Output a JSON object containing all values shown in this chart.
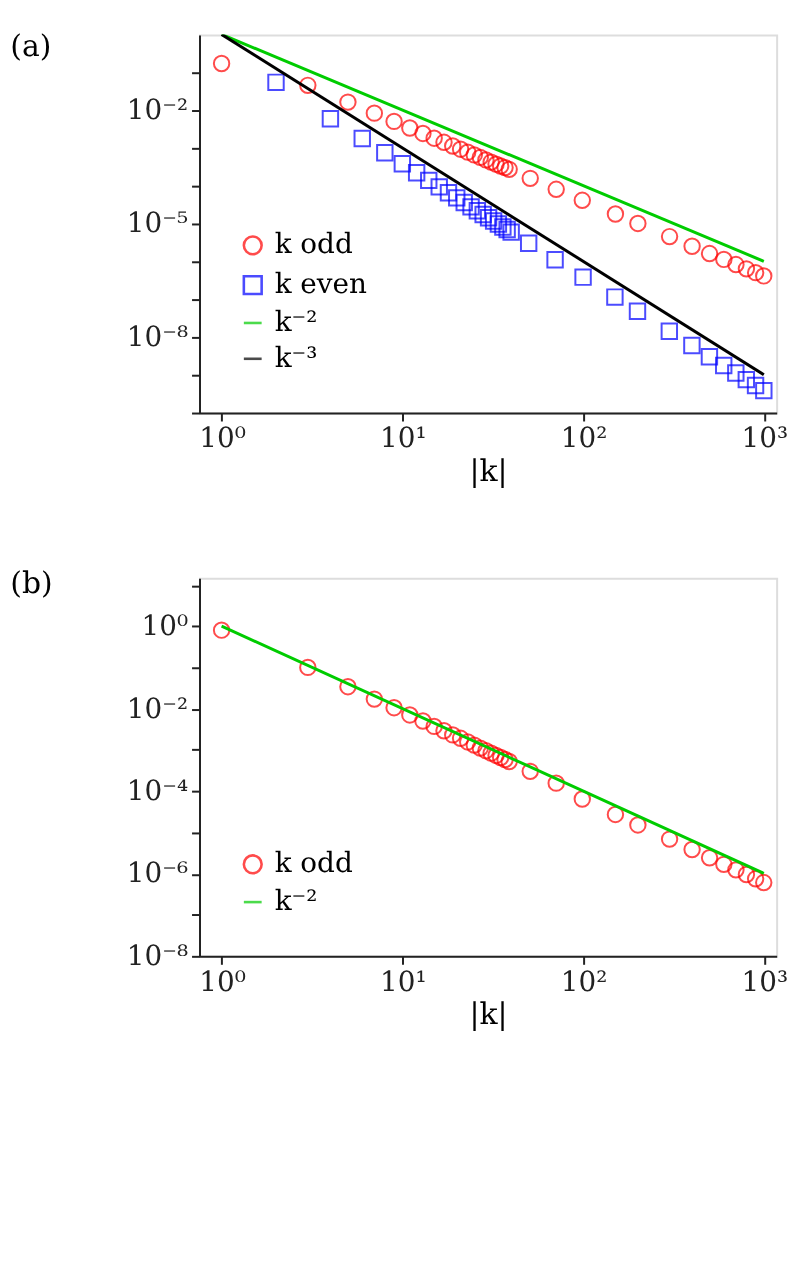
{
  "chart_data": [
    {
      "type": "scatter",
      "title": "(a)",
      "xlabel": "|k|",
      "xlim": [
        0.75,
        1170
      ],
      "ylim": [
        1e-10,
        1
      ],
      "log": "xy",
      "grid": false,
      "legend": "bottom left",
      "xticks": [
        {
          "value": 1,
          "label": "10⁰"
        },
        {
          "value": 10,
          "label": "10¹"
        },
        {
          "value": 100,
          "label": "10²"
        },
        {
          "value": 1000,
          "label": "10³"
        }
      ],
      "yticks": [
        {
          "value": 1e-10,
          "label": null
        },
        {
          "value": 1e-09,
          "label": null
        },
        {
          "value": 1e-08,
          "label": "10⁻⁸"
        },
        {
          "value": 1e-07,
          "label": null
        },
        {
          "value": 1e-06,
          "label": null
        },
        {
          "value": 1e-05,
          "label": "10⁻⁵"
        },
        {
          "value": 0.0001,
          "label": null
        },
        {
          "value": 0.001,
          "label": null
        },
        {
          "value": 0.01,
          "label": "10⁻²"
        },
        {
          "value": 0.1,
          "label": null
        }
      ],
      "series": [
        {
          "name": "k odd",
          "marker": "circle",
          "color": "#ff0000",
          "x": [
            1,
            3,
            5,
            7,
            9,
            11,
            13,
            15,
            17,
            19,
            21,
            23,
            25,
            27,
            29,
            31,
            33,
            35,
            37,
            39,
            51,
            71,
            99,
            151,
            201,
            301,
            401,
            501,
            601,
            701,
            801,
            901,
            999
          ],
          "values": [
            0.17,
            0.045,
            0.0162,
            0.00827,
            0.005,
            0.00335,
            0.0024,
            0.0018,
            0.0014,
            0.00112,
            0.00092,
            0.00077,
            0.00065,
            0.00056,
            0.00048,
            0.00042,
            0.00037,
            0.00033,
            0.0003,
            0.00027,
            0.000156,
            8e-05,
            4.1e-05,
            1.78e-05,
            1e-05,
            4.5e-06,
            2.5e-06,
            1.6e-06,
            1.12e-06,
            8.2e-07,
            6.3e-07,
            5e-07,
            4.1e-07
          ]
        },
        {
          "name": "k even",
          "marker": "square",
          "color": "#0000ff",
          "x": [
            2,
            4,
            6,
            8,
            10,
            12,
            14,
            16,
            18,
            20,
            22,
            24,
            26,
            28,
            30,
            32,
            34,
            36,
            38,
            40,
            50,
            70,
            100,
            150,
            200,
            300,
            400,
            500,
            600,
            700,
            800,
            900,
            1000
          ],
          "values": [
            0.054,
            0.0059,
            0.00176,
            0.00074,
            0.00038,
            0.00022,
            0.000138,
            9.3e-05,
            6.5e-05,
            4.75e-05,
            3.6e-05,
            2.75e-05,
            2.16e-05,
            1.73e-05,
            1.41e-05,
            1.16e-05,
            9.7e-06,
            8.1e-06,
            6.9e-06,
            5.9e-06,
            3e-06,
            1.1e-06,
            3.8e-07,
            1.13e-07,
            4.75e-08,
            1.41e-08,
            5.9e-09,
            3e-09,
            1.76e-09,
            1.11e-09,
            7.4e-10,
            5.2e-10,
            3.8e-10
          ]
        },
        {
          "name": "k⁻²",
          "type": "line",
          "line_style": "solid",
          "color": "#00cc00",
          "x": [
            1,
            1000
          ],
          "values": [
            1,
            1e-06
          ]
        },
        {
          "name": "k⁻³",
          "type": "line",
          "line_style": "solid",
          "color": "#000000",
          "x": [
            1,
            1000
          ],
          "values": [
            1,
            1e-09
          ]
        }
      ]
    },
    {
      "type": "scatter",
      "title": "(b)",
      "xlabel": "|k|",
      "xlim": [
        0.75,
        1170
      ],
      "ylim": [
        1e-08,
        15
      ],
      "log": "xy",
      "grid": false,
      "legend": "bottom left",
      "xticks": [
        {
          "value": 1,
          "label": "10⁰"
        },
        {
          "value": 10,
          "label": "10¹"
        },
        {
          "value": 100,
          "label": "10²"
        },
        {
          "value": 1000,
          "label": "10³"
        }
      ],
      "yticks": [
        {
          "value": 1e-08,
          "label": "10⁻⁸"
        },
        {
          "value": 1e-07,
          "label": null
        },
        {
          "value": 1e-06,
          "label": "10⁻⁶"
        },
        {
          "value": 1e-05,
          "label": null
        },
        {
          "value": 0.0001,
          "label": "10⁻⁴"
        },
        {
          "value": 0.001,
          "label": null
        },
        {
          "value": 0.01,
          "label": "10⁻²"
        },
        {
          "value": 0.1,
          "label": null
        },
        {
          "value": 1,
          "label": "10⁰"
        },
        {
          "value": 10,
          "label": null
        }
      ],
      "series": [
        {
          "name": "k odd",
          "marker": "circle",
          "color": "#ff0000",
          "x": [
            1,
            3,
            5,
            7,
            9,
            11,
            13,
            15,
            17,
            19,
            21,
            23,
            25,
            27,
            29,
            31,
            33,
            35,
            37,
            39,
            51,
            71,
            99,
            151,
            201,
            301,
            401,
            501,
            601,
            701,
            801,
            901,
            999
          ],
          "values": [
            0.8,
            0.1,
            0.034,
            0.017,
            0.0105,
            0.007,
            0.005,
            0.0037,
            0.0029,
            0.0023,
            0.0019,
            0.00155,
            0.0013,
            0.0011,
            0.00095,
            0.00083,
            0.00073,
            0.00065,
            0.00058,
            0.00052,
            0.0003,
            0.000155,
            6.4e-05,
            2.7e-05,
            1.5e-05,
            6.8e-06,
            3.8e-06,
            2.4e-06,
            1.66e-06,
            1.22e-06,
            9.4e-07,
            7.4e-07,
            6e-07
          ]
        },
        {
          "name": "k⁻²",
          "type": "line",
          "line_style": "solid",
          "color": "#00cc00",
          "x": [
            1,
            1000
          ],
          "values": [
            1,
            1e-06
          ]
        }
      ]
    }
  ]
}
